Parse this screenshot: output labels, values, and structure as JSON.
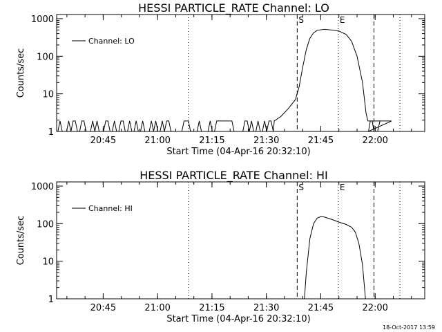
{
  "chart_data": [
    {
      "type": "line",
      "title": "HESSI PARTICLE_RATE Channel: LO",
      "xlabel": "Start Time (04-Apr-16 20:32:10)",
      "ylabel": "Counts/sec",
      "yscale": "log",
      "ylim": [
        1,
        1000
      ],
      "xlim": [
        "20:32:10",
        "22:13:40"
      ],
      "x_ticks": [
        "20:45",
        "21:00",
        "21:15",
        "21:30",
        "21:45",
        "22:00"
      ],
      "y_ticks": [
        "1",
        "10",
        "100",
        "1000"
      ],
      "legend": "top-left",
      "markers": [
        {
          "label": "S",
          "time": "21:38:30",
          "style": "dashed"
        },
        {
          "label": "E",
          "time": "21:49:50",
          "style": "dotted"
        },
        {
          "label": "",
          "time": "21:59:40",
          "style": "dashed"
        },
        {
          "label": "",
          "time": "21:08:30",
          "style": "dotted"
        },
        {
          "label": "",
          "time": "22:06:50",
          "style": "dotted"
        }
      ],
      "series": [
        {
          "name": "Channel: LO",
          "baseline_noise_between": [
            1,
            1.9
          ],
          "points": [
            [
              "21:32:10",
              1.9
            ],
            [
              "21:34:00",
              2.5
            ],
            [
              "21:36:00",
              4
            ],
            [
              "21:38:00",
              7
            ],
            [
              "21:39:00",
              15
            ],
            [
              "21:40:00",
              50
            ],
            [
              "21:41:00",
              150
            ],
            [
              "21:42:00",
              300
            ],
            [
              "21:43:00",
              420
            ],
            [
              "21:44:00",
              490
            ],
            [
              "21:46:00",
              520
            ],
            [
              "21:48:00",
              500
            ],
            [
              "21:50:00",
              470
            ],
            [
              "21:52:00",
              380
            ],
            [
              "21:53:30",
              250
            ],
            [
              "21:55:00",
              100
            ],
            [
              "21:56:30",
              20
            ],
            [
              "21:57:30",
              3
            ],
            [
              "21:58:00",
              1.9
            ],
            [
              "22:04:30",
              1.9
            ]
          ]
        }
      ]
    },
    {
      "type": "line",
      "title": "HESSI PARTICLE_RATE Channel: HI",
      "xlabel": "Start Time (04-Apr-16 20:32:10)",
      "ylabel": "Counts/sec",
      "yscale": "log",
      "ylim": [
        1,
        1000
      ],
      "xlim": [
        "20:32:10",
        "22:13:40"
      ],
      "x_ticks": [
        "20:45",
        "21:00",
        "21:15",
        "21:30",
        "21:45",
        "22:00"
      ],
      "y_ticks": [
        "1",
        "10",
        "100",
        "1000"
      ],
      "legend": "top-left",
      "markers": [
        {
          "label": "S",
          "time": "21:38:30",
          "style": "dashed"
        },
        {
          "label": "E",
          "time": "21:49:50",
          "style": "dotted"
        },
        {
          "label": "",
          "time": "21:59:40",
          "style": "dashed"
        },
        {
          "label": "",
          "time": "21:08:30",
          "style": "dotted"
        },
        {
          "label": "",
          "time": "22:06:50",
          "style": "dotted"
        }
      ],
      "series": [
        {
          "name": "Channel: HI",
          "points": [
            [
              "21:40:30",
              1
            ],
            [
              "21:41:00",
              5
            ],
            [
              "21:42:00",
              40
            ],
            [
              "21:43:00",
              100
            ],
            [
              "21:44:00",
              140
            ],
            [
              "21:45:00",
              155
            ],
            [
              "21:46:00",
              150
            ],
            [
              "21:48:00",
              130
            ],
            [
              "21:50:00",
              110
            ],
            [
              "21:52:00",
              95
            ],
            [
              "21:53:30",
              80
            ],
            [
              "21:54:30",
              60
            ],
            [
              "21:55:30",
              30
            ],
            [
              "21:56:30",
              8
            ],
            [
              "21:57:20",
              1
            ]
          ]
        }
      ]
    }
  ],
  "footer": {
    "stamp": "18-Oct-2017 13:59"
  }
}
